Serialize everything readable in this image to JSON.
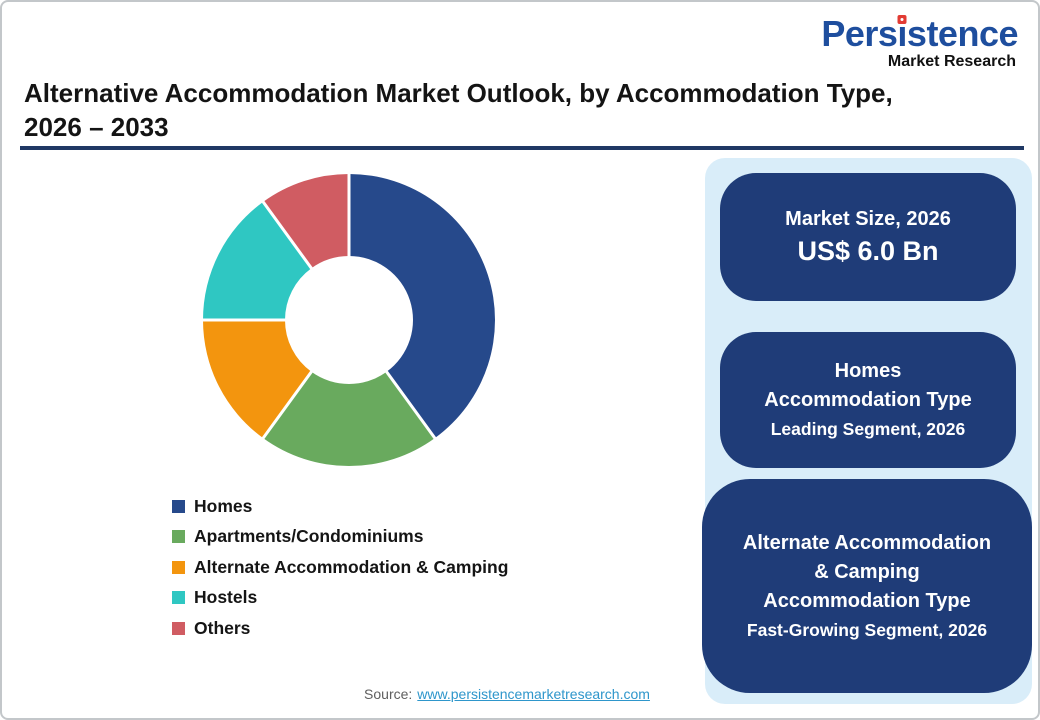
{
  "logo": {
    "word_pre": "Pers",
    "word_i": "ı",
    "word_post": "stence",
    "tagline": "Market Research",
    "brand_blue": "#1e4e9e",
    "brand_red": "#e23b33"
  },
  "header": {
    "title_line1": "Alternative Accommodation Market Outlook, by Accommodation Type,",
    "title_line2": "2026 – 2033",
    "rule_color": "#1f3864"
  },
  "chart_data": {
    "type": "pie",
    "subtype": "donut",
    "title": "Alternative Accommodation Market Outlook, by Accommodation Type, 2026 – 2033",
    "categories": [
      "Homes",
      "Apartments/Condominiums",
      "Alternate Accommodation & Camping",
      "Hostels",
      "Others"
    ],
    "values": [
      40,
      20,
      15,
      15,
      10
    ],
    "values_note": "approximate % share estimated from arc angles; no numeric labels shown in figure",
    "colors": [
      "#26498b",
      "#69aa5e",
      "#f3950e",
      "#2fc7c2",
      "#d05c62"
    ],
    "start_angle_deg": 0,
    "clockwise": true,
    "inner_radius_ratio": 0.44,
    "legend_position": "bottom-left",
    "separator_color": "#ffffff"
  },
  "panel": {
    "background": "#d9edf9",
    "card_color": "#1f3c78",
    "cards": [
      {
        "title": "Market Size, 2026",
        "value": "US$ 6.0 Bn"
      },
      {
        "lines": [
          "Homes",
          "Accommodation Type"
        ],
        "sub": "Leading Segment, 2026"
      },
      {
        "lines": [
          "Alternate Accommodation",
          "& Camping",
          "Accommodation Type"
        ],
        "sub": "Fast-Growing Segment, 2026"
      }
    ]
  },
  "footer": {
    "source_label": "Source:",
    "link_text": "www.persistencemarketresearch.com",
    "link_color": "#2e96cb"
  }
}
